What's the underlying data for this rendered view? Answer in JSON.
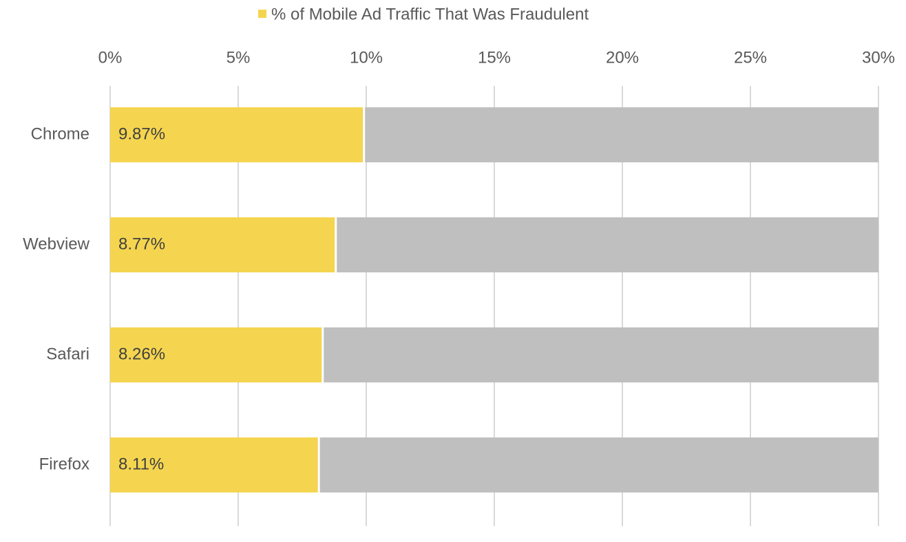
{
  "chart_data": {
    "type": "bar",
    "orientation": "horizontal",
    "legend": "top",
    "categories": [
      "Chrome",
      "Webview",
      "Safari",
      "Firefox"
    ],
    "series": [
      {
        "name": "% of Mobile Ad Traffic That Was Fraudulent",
        "color": "#f5d54f",
        "values": [
          9.87,
          8.77,
          8.26,
          8.11
        ],
        "value_labels": [
          "9.87%",
          "8.77%",
          "8.26%",
          "8.11%"
        ]
      }
    ],
    "xlim": [
      0,
      30
    ],
    "xticks": [
      {
        "value": 0,
        "label": "0%"
      },
      {
        "value": 5,
        "label": "5%"
      },
      {
        "value": 10,
        "label": "10%"
      },
      {
        "value": 15,
        "label": "15%"
      },
      {
        "value": 20,
        "label": "20%"
      },
      {
        "value": 25,
        "label": "25%"
      },
      {
        "value": 30,
        "label": "30%"
      }
    ],
    "grid": true
  }
}
